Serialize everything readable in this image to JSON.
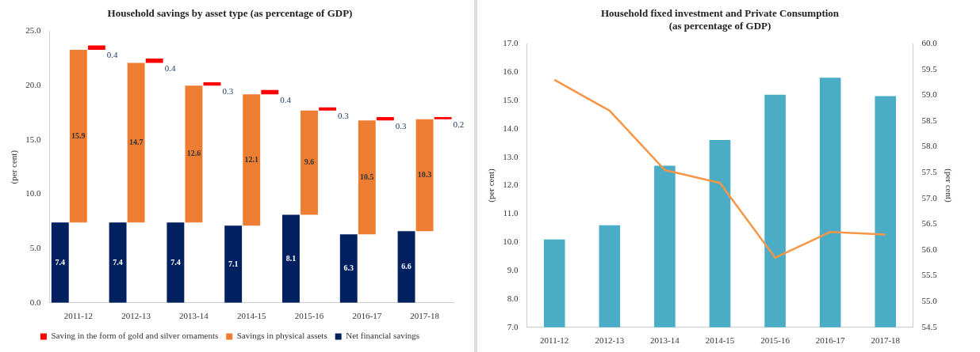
{
  "chart_data": [
    {
      "type": "bar",
      "title": "Household savings by asset type (as percentage of GDP)",
      "ylabel": "(per cent)",
      "categories": [
        "2011-12",
        "2012-13",
        "2013-14",
        "2014-15",
        "2015-16",
        "2016-17",
        "2017-18"
      ],
      "series": [
        {
          "name": "Net financial savings",
          "color": "#002060",
          "values": [
            7.4,
            7.4,
            7.4,
            7.1,
            8.1,
            6.3,
            6.6
          ]
        },
        {
          "name": "Savings in physical assets",
          "color": "#ed7d31",
          "values": [
            15.9,
            14.7,
            12.6,
            12.1,
            9.6,
            10.5,
            10.3
          ],
          "base": [
            7.4,
            7.4,
            7.4,
            7.1,
            8.1,
            6.3,
            6.6
          ]
        },
        {
          "name": "Saving in the form of gold and silver ornaments",
          "color": "#ff0000",
          "values": [
            0.4,
            0.4,
            0.3,
            0.4,
            0.3,
            0.3,
            0.2
          ],
          "base": [
            23.3,
            22.1,
            20.0,
            19.2,
            17.7,
            16.8,
            16.9
          ]
        }
      ],
      "ylim": [
        0,
        25
      ],
      "yticks": [
        {
          "value": 0,
          "label": "0.0"
        },
        {
          "value": 5,
          "label": "5.0"
        },
        {
          "value": 10,
          "label": "10.0"
        },
        {
          "value": 15,
          "label": "15.0"
        },
        {
          "value": 20,
          "label": "20.0"
        },
        {
          "value": 25,
          "label": "25.0"
        }
      ],
      "data_labels": true,
      "legend": "bottom",
      "grid": false
    },
    {
      "type": "bar",
      "title": "Household fixed investment and Private Consumption\n(as percentage of GDP)",
      "ylabel": "(per cent)",
      "y2label": "(per cent)",
      "categories": [
        "2011-12",
        "2012-13",
        "2013-14",
        "2014-15",
        "2015-16",
        "2016-17",
        "2017-18"
      ],
      "series": [
        {
          "color": "#4bacc6",
          "values": [
            10.1,
            10.6,
            12.7,
            13.6,
            15.2,
            15.8,
            15.15
          ]
        },
        {
          "type": "line",
          "axis": "y2",
          "color": "#f79646",
          "values": [
            59.3,
            58.7,
            57.55,
            57.3,
            55.85,
            56.35,
            56.3
          ]
        }
      ],
      "ylim": [
        7,
        17
      ],
      "yticks": [
        {
          "value": 7,
          "label": "7.0"
        },
        {
          "value": 8,
          "label": "8.0"
        },
        {
          "value": 9,
          "label": "9.0"
        },
        {
          "value": 10,
          "label": "10.0"
        },
        {
          "value": 11,
          "label": "11.0"
        },
        {
          "value": 12,
          "label": "12.0"
        },
        {
          "value": 13,
          "label": "13.0"
        },
        {
          "value": 14,
          "label": "14.0"
        },
        {
          "value": 15,
          "label": "15.0"
        },
        {
          "value": 16,
          "label": "16.0"
        },
        {
          "value": 17,
          "label": "17.0"
        }
      ],
      "y2lim": [
        54.5,
        60
      ],
      "y2ticks": [
        {
          "value": 54.5,
          "label": "54.5"
        },
        {
          "value": 55,
          "label": "55.0"
        },
        {
          "value": 55.5,
          "label": "55.5"
        },
        {
          "value": 56,
          "label": "56.0"
        },
        {
          "value": 56.5,
          "label": "56.5"
        },
        {
          "value": 57,
          "label": "57.0"
        },
        {
          "value": 57.5,
          "label": "57.5"
        },
        {
          "value": 58,
          "label": "58.0"
        },
        {
          "value": 58.5,
          "label": "58.5"
        },
        {
          "value": 59,
          "label": "59.0"
        },
        {
          "value": 59.5,
          "label": "59.5"
        },
        {
          "value": 60,
          "label": "60.0"
        }
      ],
      "legend": false,
      "grid": false,
      "marker": "none"
    }
  ]
}
